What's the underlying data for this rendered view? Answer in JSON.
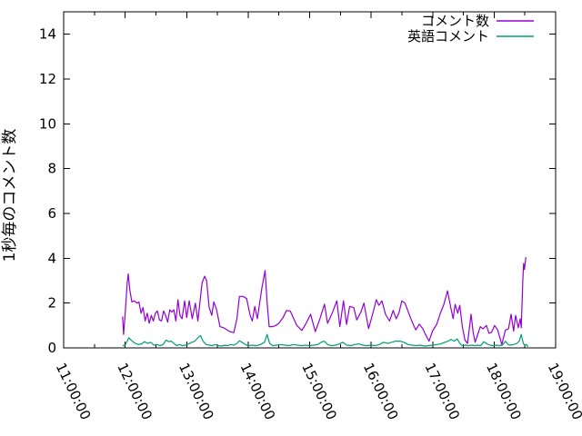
{
  "chart_data": {
    "type": "line",
    "title": "",
    "xlabel": "",
    "ylabel": "1秒毎のコメント数",
    "grid": false,
    "legend_position": "top-right-inside",
    "x_axis": {
      "kind": "time",
      "start": "11:00:00",
      "end": "19:00:00",
      "major_tick_interval_minutes": 60,
      "minor_tick_interval_minutes": 30,
      "tick_labels": [
        "11:00:00",
        "12:00:00",
        "13:00:00",
        "14:00:00",
        "15:00:00",
        "16:00:00",
        "17:00:00",
        "18:00:00",
        "19:00:00"
      ],
      "label_rotation_deg": 64
    },
    "y_axis": {
      "min": 0,
      "max": 15,
      "tick_step": 2,
      "tick_labels": [
        "0",
        "2",
        "4",
        "6",
        "8",
        "10",
        "12",
        "14"
      ]
    },
    "colors": {
      "series1": "#9400d3",
      "series2": "#009e73",
      "axis": "#000000",
      "background": "#ffffff"
    },
    "series": [
      {
        "name": "コメント数",
        "color": "#9400d3",
        "points_unit": "minutes_after_11:00, comments_per_second",
        "points": [
          [
            57.5,
            1.4
          ],
          [
            58.5,
            0.6
          ],
          [
            60,
            1.5
          ],
          [
            62,
            2.9
          ],
          [
            63,
            3.3
          ],
          [
            64.5,
            2.6
          ],
          [
            66.5,
            2.05
          ],
          [
            69,
            2.1
          ],
          [
            71.5,
            2.0
          ],
          [
            73.5,
            2.05
          ],
          [
            75.5,
            1.55
          ],
          [
            77.5,
            1.8
          ],
          [
            79.5,
            1.2
          ],
          [
            81.5,
            1.55
          ],
          [
            83.5,
            1.1
          ],
          [
            85.5,
            1.45
          ],
          [
            87.5,
            1.2
          ],
          [
            89.5,
            1.55
          ],
          [
            91.5,
            1.65
          ],
          [
            93.5,
            1.25
          ],
          [
            95.5,
            1.2
          ],
          [
            97.5,
            1.65
          ],
          [
            99.5,
            1.45
          ],
          [
            101.5,
            1.15
          ],
          [
            103.5,
            1.7
          ],
          [
            105.5,
            1.6
          ],
          [
            107.5,
            1.7
          ],
          [
            109.5,
            1.2
          ],
          [
            111.5,
            2.15
          ],
          [
            113.5,
            1.45
          ],
          [
            115.5,
            1.3
          ],
          [
            118,
            2.1
          ],
          [
            120,
            1.35
          ],
          [
            122.5,
            2.1
          ],
          [
            125.5,
            1.3
          ],
          [
            128.5,
            2.0
          ],
          [
            131,
            1.2
          ],
          [
            135,
            2.9
          ],
          [
            137.5,
            3.2
          ],
          [
            139.5,
            3.0
          ],
          [
            142,
            1.8
          ],
          [
            144.5,
            1.45
          ],
          [
            146.5,
            2.05
          ],
          [
            149,
            1.75
          ],
          [
            152.5,
            0.95
          ],
          [
            156,
            0.9
          ],
          [
            162,
            0.73
          ],
          [
            166,
            0.68
          ],
          [
            169,
            1.3
          ],
          [
            171.5,
            2.3
          ],
          [
            175,
            2.3
          ],
          [
            178.5,
            2.2
          ],
          [
            182,
            1.45
          ],
          [
            184,
            1.2
          ],
          [
            186.5,
            1.85
          ],
          [
            189,
            1.3
          ],
          [
            193.5,
            2.7
          ],
          [
            196.5,
            3.45
          ],
          [
            198.5,
            2.05
          ],
          [
            200.5,
            0.95
          ],
          [
            204,
            0.95
          ],
          [
            207,
            1.0
          ],
          [
            210,
            1.1
          ],
          [
            214,
            1.35
          ],
          [
            217.5,
            1.67
          ],
          [
            221,
            1.65
          ],
          [
            227.5,
            1.0
          ],
          [
            232.5,
            0.78
          ],
          [
            236.5,
            1.1
          ],
          [
            241,
            1.5
          ],
          [
            245.5,
            0.72
          ],
          [
            250,
            1.3
          ],
          [
            254.5,
            1.95
          ],
          [
            257.5,
            1.1
          ],
          [
            262,
            1.55
          ],
          [
            266.5,
            2.1
          ],
          [
            269.5,
            0.95
          ],
          [
            273,
            2.1
          ],
          [
            276,
            1.05
          ],
          [
            279,
            1.85
          ],
          [
            283,
            1.8
          ],
          [
            286,
            1.25
          ],
          [
            290,
            1.6
          ],
          [
            293,
            2.0
          ],
          [
            297.5,
            0.86
          ],
          [
            302,
            1.6
          ],
          [
            305,
            2.15
          ],
          [
            307.5,
            1.9
          ],
          [
            310.5,
            2.1
          ],
          [
            314,
            1.5
          ],
          [
            318,
            1.2
          ],
          [
            321.5,
            1.67
          ],
          [
            324.5,
            1.3
          ],
          [
            327,
            1.55
          ],
          [
            330,
            2.1
          ],
          [
            333,
            2.0
          ],
          [
            339,
            1.27
          ],
          [
            343.5,
            0.8
          ],
          [
            347,
            1.06
          ],
          [
            350.5,
            0.85
          ],
          [
            353,
            0.6
          ],
          [
            356.5,
            0.3
          ],
          [
            360,
            0.77
          ],
          [
            364,
            1.06
          ],
          [
            367.5,
            1.54
          ],
          [
            371,
            1.94
          ],
          [
            374.5,
            2.55
          ],
          [
            378,
            1.74
          ],
          [
            380,
            1.3
          ],
          [
            382,
            1.94
          ],
          [
            384.5,
            1.55
          ],
          [
            386.5,
            1.9
          ],
          [
            389,
            0.95
          ],
          [
            391.5,
            0.35
          ],
          [
            394,
            0.2
          ],
          [
            397.5,
            1.5
          ],
          [
            399.5,
            0.7
          ],
          [
            401.5,
            0.25
          ],
          [
            404,
            0.6
          ],
          [
            406.5,
            0.95
          ],
          [
            409,
            0.85
          ],
          [
            412.5,
            1.0
          ],
          [
            415,
            0.65
          ],
          [
            417.5,
            0.7
          ],
          [
            420.5,
            1.0
          ],
          [
            423.5,
            0.8
          ],
          [
            427.5,
            0.15
          ],
          [
            431,
            0.8
          ],
          [
            434,
            0.85
          ],
          [
            436.5,
            1.5
          ],
          [
            439,
            0.75
          ],
          [
            441,
            1.45
          ],
          [
            443.5,
            0.9
          ],
          [
            445.5,
            1.3
          ],
          [
            446.5,
            0.9
          ],
          [
            448,
            3.0
          ],
          [
            448.8,
            3.77
          ],
          [
            449.6,
            3.5
          ],
          [
            451,
            4.05
          ]
        ]
      },
      {
        "name": "英語コメント",
        "color": "#009e73",
        "points_unit": "minutes_after_11:00, comments_per_second",
        "points": [
          [
            57.5,
            0.1
          ],
          [
            60,
            0.12
          ],
          [
            62,
            0.3
          ],
          [
            63.5,
            0.45
          ],
          [
            65,
            0.38
          ],
          [
            67,
            0.3
          ],
          [
            70,
            0.2
          ],
          [
            73,
            0.15
          ],
          [
            76,
            0.18
          ],
          [
            79,
            0.28
          ],
          [
            82,
            0.2
          ],
          [
            85,
            0.25
          ],
          [
            88,
            0.12
          ],
          [
            91,
            0.15
          ],
          [
            94,
            0.1
          ],
          [
            97,
            0.15
          ],
          [
            100,
            0.35
          ],
          [
            102.5,
            0.28
          ],
          [
            105,
            0.3
          ],
          [
            107.5,
            0.2
          ],
          [
            110,
            0.1
          ],
          [
            113,
            0.15
          ],
          [
            116,
            0.1
          ],
          [
            119,
            0.12
          ],
          [
            122,
            0.18
          ],
          [
            125,
            0.25
          ],
          [
            128,
            0.3
          ],
          [
            131,
            0.45
          ],
          [
            133.5,
            0.55
          ],
          [
            136,
            0.3
          ],
          [
            139,
            0.15
          ],
          [
            142,
            0.12
          ],
          [
            145,
            0.1
          ],
          [
            148,
            0.15
          ],
          [
            151,
            0.1
          ],
          [
            154,
            0.08
          ],
          [
            157,
            0.12
          ],
          [
            160,
            0.1
          ],
          [
            163,
            0.15
          ],
          [
            166,
            0.12
          ],
          [
            169,
            0.2
          ],
          [
            171.5,
            0.32
          ],
          [
            174,
            0.25
          ],
          [
            177,
            0.15
          ],
          [
            180,
            0.1
          ],
          [
            184,
            0.12
          ],
          [
            188,
            0.1
          ],
          [
            192,
            0.15
          ],
          [
            196,
            0.25
          ],
          [
            198.5,
            0.6
          ],
          [
            201,
            0.2
          ],
          [
            204,
            0.1
          ],
          [
            208,
            0.12
          ],
          [
            212,
            0.15
          ],
          [
            216,
            0.12
          ],
          [
            220,
            0.1
          ],
          [
            224,
            0.15
          ],
          [
            228,
            0.12
          ],
          [
            232,
            0.1
          ],
          [
            236,
            0.12
          ],
          [
            240,
            0.1
          ],
          [
            244,
            0.12
          ],
          [
            248,
            0.15
          ],
          [
            251.5,
            0.26
          ],
          [
            254.5,
            0.3
          ],
          [
            257.5,
            0.15
          ],
          [
            261,
            0.1
          ],
          [
            265,
            0.12
          ],
          [
            269,
            0.18
          ],
          [
            272.5,
            0.25
          ],
          [
            276,
            0.12
          ],
          [
            280,
            0.1
          ],
          [
            284,
            0.15
          ],
          [
            288,
            0.18
          ],
          [
            292,
            0.12
          ],
          [
            296,
            0.1
          ],
          [
            300,
            0.12
          ],
          [
            304,
            0.1
          ],
          [
            308,
            0.15
          ],
          [
            312,
            0.25
          ],
          [
            316,
            0.2
          ],
          [
            320,
            0.25
          ],
          [
            324,
            0.3
          ],
          [
            328,
            0.3
          ],
          [
            332,
            0.25
          ],
          [
            336,
            0.15
          ],
          [
            340,
            0.12
          ],
          [
            344,
            0.1
          ],
          [
            348,
            0.12
          ],
          [
            352,
            0.08
          ],
          [
            356,
            0.1
          ],
          [
            360,
            0.12
          ],
          [
            364,
            0.15
          ],
          [
            368,
            0.18
          ],
          [
            372,
            0.25
          ],
          [
            375,
            0.3
          ],
          [
            378,
            0.38
          ],
          [
            381,
            0.3
          ],
          [
            384,
            0.4
          ],
          [
            386.5,
            0.2
          ],
          [
            389,
            0.1
          ],
          [
            392,
            0.12
          ],
          [
            395,
            0.1
          ],
          [
            398,
            0.12
          ],
          [
            401,
            0.1
          ],
          [
            404,
            0.12
          ],
          [
            407,
            0.1
          ],
          [
            410,
            0.28
          ],
          [
            413,
            0.18
          ],
          [
            416,
            0.12
          ],
          [
            419,
            0.1
          ],
          [
            422,
            0.12
          ],
          [
            425,
            0.1
          ],
          [
            428,
            0.12
          ],
          [
            431,
            0.3
          ],
          [
            433.5,
            0.15
          ],
          [
            436,
            0.12
          ],
          [
            439,
            0.15
          ],
          [
            442,
            0.2
          ],
          [
            444.5,
            0.3
          ],
          [
            446.5,
            0.6
          ],
          [
            448.5,
            0.2
          ],
          [
            450,
            0.1
          ],
          [
            451.5,
            0.15
          ],
          [
            453,
            0.05
          ]
        ]
      }
    ]
  }
}
